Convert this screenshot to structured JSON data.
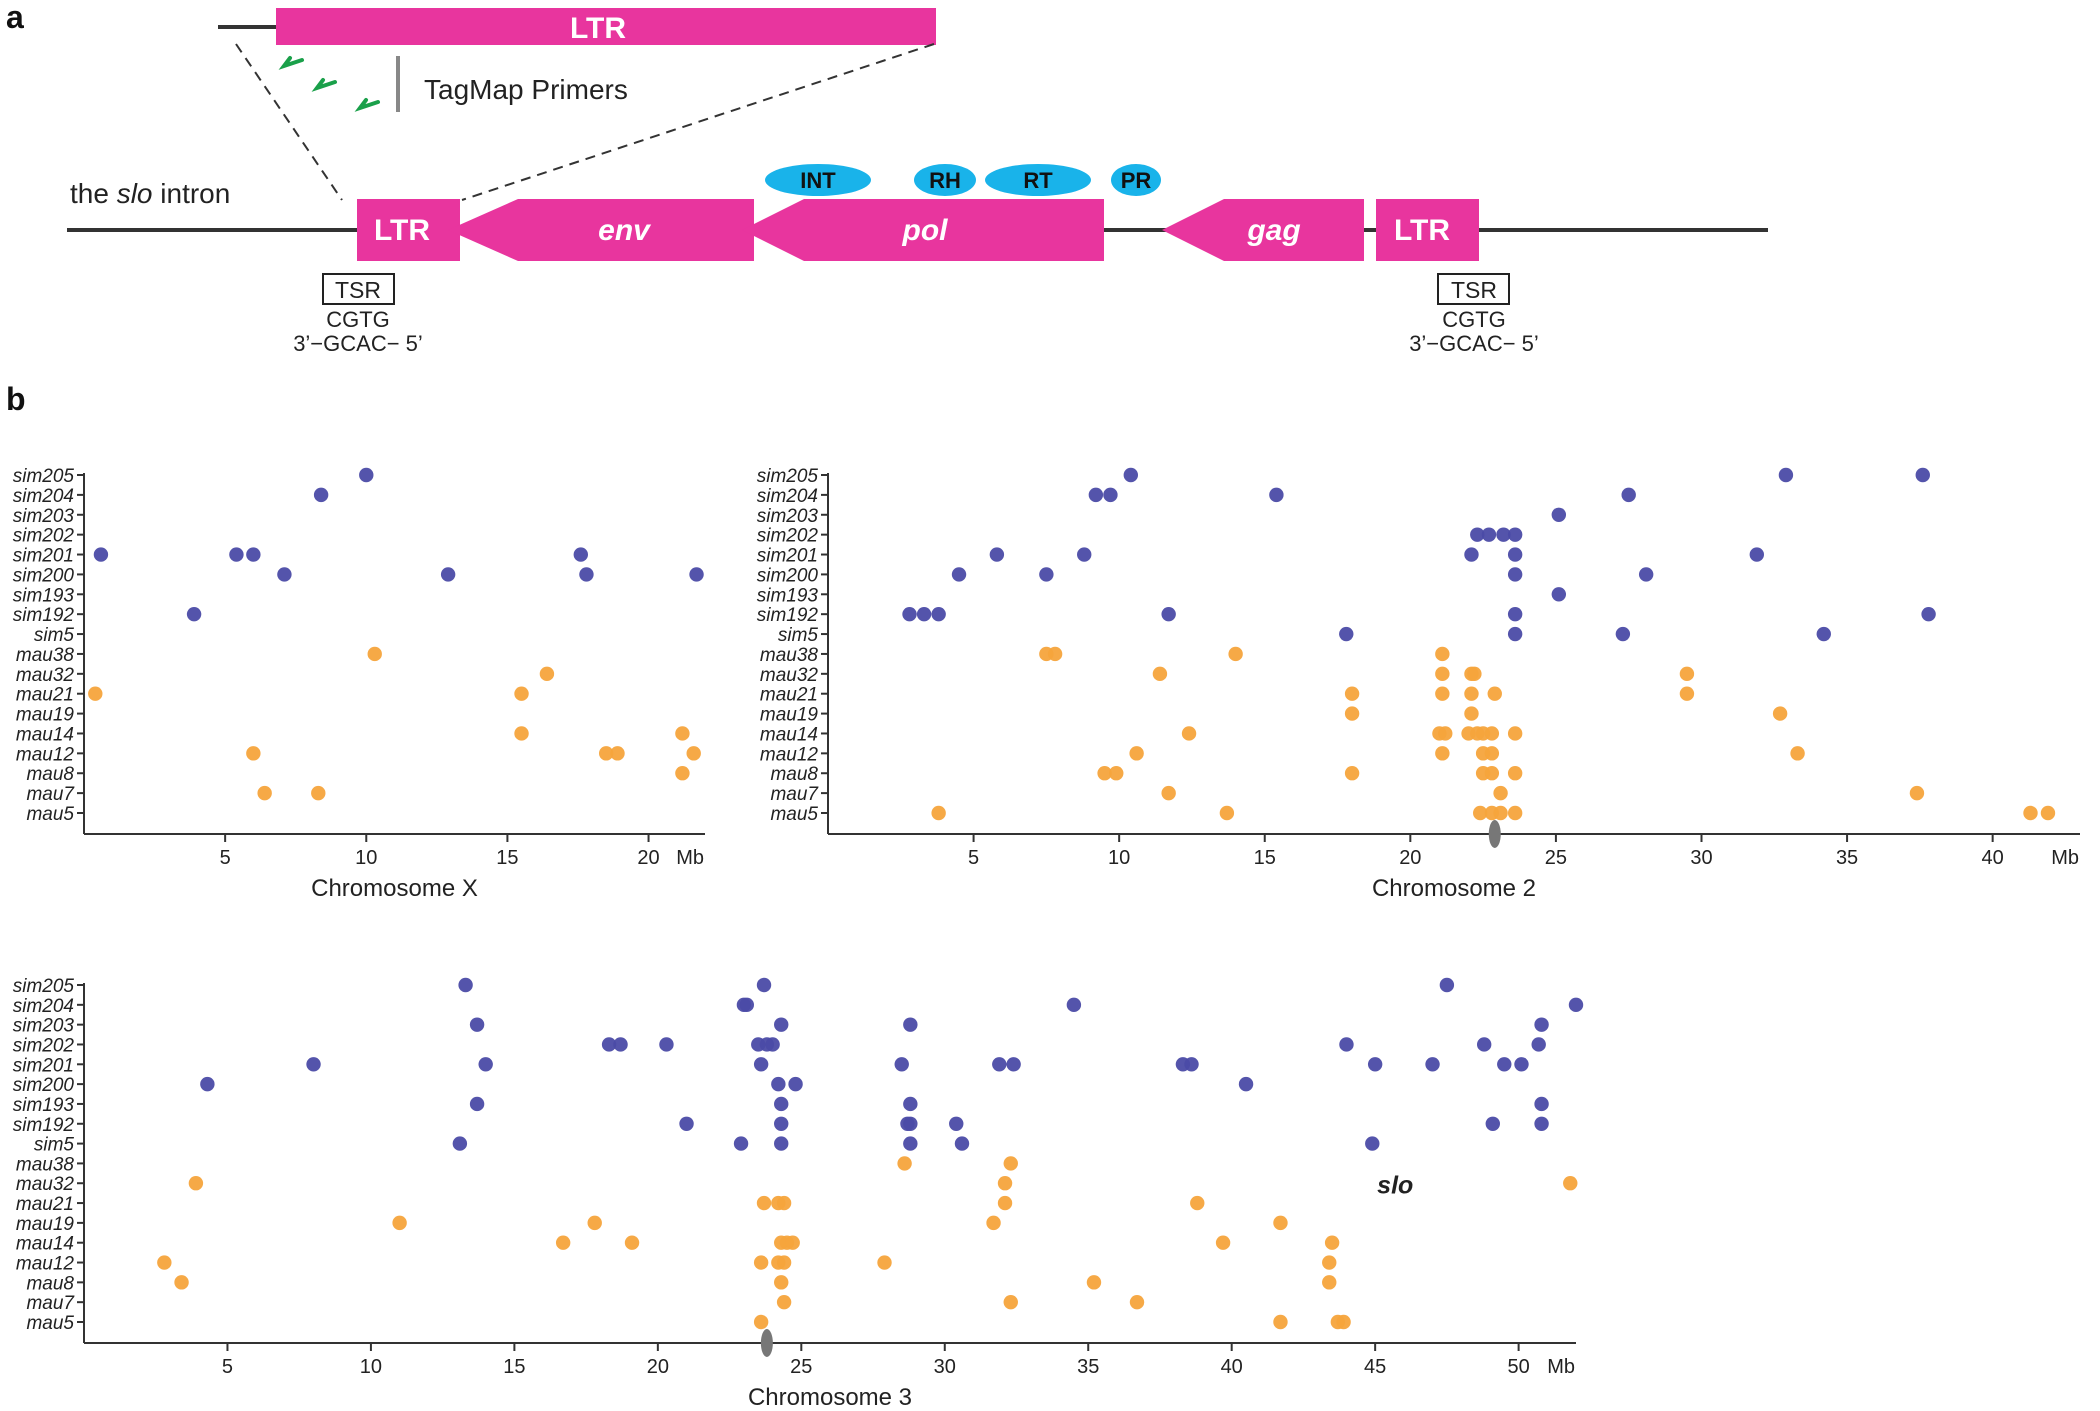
{
  "panel_a": {
    "label": "a",
    "intron_label_prefix": "the ",
    "intron_label_gene": "slo",
    "intron_label_suffix": " intron",
    "zoom_ltr_label": "LTR",
    "primers_label": "TagMap Primers",
    "ltr_left": "LTR",
    "ltr_right": "LTR",
    "env": "env",
    "pol": "pol",
    "gag": "gag",
    "domains": [
      "INT",
      "RH",
      "RT",
      "PR"
    ],
    "tsr_label": "TSR",
    "tsr_top": "CGTG",
    "tsr_bottom": "3’−GCAC− 5’",
    "colors": {
      "element": "#e8359e",
      "domain": "#19b3ea",
      "primer": "#1aa04a",
      "line": "#333333"
    }
  },
  "panel_b": {
    "label": "b"
  },
  "colors": {
    "sim": "#4b4ba6",
    "mau": "#f6a43c",
    "axis": "#333333",
    "centromere": "#777777"
  },
  "chart_data": [
    {
      "type": "scatter",
      "title": "",
      "xlabel": "Chromosome X",
      "x_unit": "Mb",
      "xlim": [
        0,
        22
      ],
      "xticks": [
        5,
        10,
        15,
        20
      ],
      "strains": [
        "sim205",
        "sim204",
        "sim203",
        "sim202",
        "sim201",
        "sim200",
        "sim193",
        "sim192",
        "sim5",
        "mau38",
        "mau32",
        "mau21",
        "mau19",
        "mau14",
        "mau12",
        "mau8",
        "mau7",
        "mau5"
      ],
      "series": [
        {
          "name": "sim205",
          "values": [
            10.0
          ]
        },
        {
          "name": "sim204",
          "values": [
            8.4
          ]
        },
        {
          "name": "sim203",
          "values": []
        },
        {
          "name": "sim202",
          "values": []
        },
        {
          "name": "sim201",
          "values": [
            0.6,
            5.4,
            6.0,
            17.6
          ]
        },
        {
          "name": "sim200",
          "values": [
            7.1,
            12.9,
            17.8,
            21.7
          ]
        },
        {
          "name": "sim193",
          "values": []
        },
        {
          "name": "sim192",
          "values": [
            3.9
          ]
        },
        {
          "name": "sim5",
          "values": []
        },
        {
          "name": "mau38",
          "values": [
            10.3
          ]
        },
        {
          "name": "mau32",
          "values": [
            16.4
          ]
        },
        {
          "name": "mau21",
          "values": [
            0.4,
            15.5
          ]
        },
        {
          "name": "mau19",
          "values": []
        },
        {
          "name": "mau14",
          "values": [
            15.5,
            21.2
          ]
        },
        {
          "name": "mau12",
          "values": [
            6.0,
            18.5,
            18.9,
            21.6
          ]
        },
        {
          "name": "mau8",
          "values": [
            21.2
          ]
        },
        {
          "name": "mau7",
          "values": [
            6.4,
            8.3
          ]
        },
        {
          "name": "mau5",
          "values": []
        }
      ],
      "centromere": null,
      "annotation": ""
    },
    {
      "type": "scatter",
      "title": "",
      "xlabel": "Chromosome 2",
      "x_unit": "Mb",
      "xlim": [
        0,
        43
      ],
      "xticks": [
        5,
        10,
        15,
        20,
        25,
        30,
        35,
        40
      ],
      "strains": [
        "sim205",
        "sim204",
        "sim203",
        "sim202",
        "sim201",
        "sim200",
        "sim193",
        "sim192",
        "sim5",
        "mau38",
        "mau32",
        "mau21",
        "mau19",
        "mau14",
        "mau12",
        "mau8",
        "mau7",
        "mau5"
      ],
      "series": [
        {
          "name": "sim205",
          "values": [
            10.4,
            32.9,
            37.6
          ]
        },
        {
          "name": "sim204",
          "values": [
            9.2,
            9.7,
            15.4,
            27.5
          ]
        },
        {
          "name": "sim203",
          "values": [
            25.1
          ]
        },
        {
          "name": "sim202",
          "values": [
            22.3,
            22.7,
            23.2,
            23.6
          ]
        },
        {
          "name": "sim201",
          "values": [
            5.8,
            8.8,
            22.1,
            23.6,
            31.9
          ]
        },
        {
          "name": "sim200",
          "values": [
            4.5,
            7.5,
            23.6,
            28.1
          ]
        },
        {
          "name": "sim193",
          "values": [
            25.1
          ]
        },
        {
          "name": "sim192",
          "values": [
            2.8,
            3.3,
            3.8,
            11.7,
            23.6,
            37.8
          ]
        },
        {
          "name": "sim5",
          "values": [
            17.8,
            23.6,
            27.3,
            34.2
          ]
        },
        {
          "name": "mau38",
          "values": [
            7.5,
            7.8,
            14.0,
            21.1
          ]
        },
        {
          "name": "mau32",
          "values": [
            11.4,
            21.1,
            22.1,
            22.2,
            29.5
          ]
        },
        {
          "name": "mau21",
          "values": [
            18.0,
            21.1,
            22.1,
            22.9,
            29.5
          ]
        },
        {
          "name": "mau19",
          "values": [
            18.0,
            22.1,
            32.7
          ]
        },
        {
          "name": "mau14",
          "values": [
            12.4,
            21.0,
            21.2,
            22.0,
            22.3,
            22.5,
            22.8,
            23.6
          ]
        },
        {
          "name": "mau12",
          "values": [
            10.6,
            21.1,
            22.5,
            22.8,
            33.3
          ]
        },
        {
          "name": "mau8",
          "values": [
            9.5,
            9.9,
            18.0,
            22.5,
            22.8,
            23.6
          ]
        },
        {
          "name": "mau7",
          "values": [
            11.7,
            23.1,
            37.4
          ]
        },
        {
          "name": "mau5",
          "values": [
            3.8,
            13.7,
            22.4,
            22.8,
            23.1,
            23.6,
            41.3,
            41.9
          ]
        }
      ],
      "centromere": 22.9,
      "annotation": ""
    },
    {
      "type": "scatter",
      "title": "",
      "xlabel": "Chromosome 3",
      "x_unit": "Mb",
      "xlim": [
        0,
        52
      ],
      "xticks": [
        5,
        10,
        15,
        20,
        25,
        30,
        35,
        40,
        45,
        50
      ],
      "strains": [
        "sim205",
        "sim204",
        "sim203",
        "sim202",
        "sim201",
        "sim200",
        "sim193",
        "sim192",
        "sim5",
        "mau38",
        "mau32",
        "mau21",
        "mau19",
        "mau14",
        "mau12",
        "mau8",
        "mau7",
        "mau5"
      ],
      "series": [
        {
          "name": "sim205",
          "values": [
            13.3,
            23.7,
            47.5
          ]
        },
        {
          "name": "sim204",
          "values": [
            23.0,
            23.1,
            34.5,
            52.0
          ]
        },
        {
          "name": "sim203",
          "values": [
            13.7,
            24.3,
            28.8,
            50.8
          ]
        },
        {
          "name": "sim202",
          "values": [
            18.3,
            18.7,
            20.3,
            23.5,
            23.8,
            24.0,
            44.0,
            48.8,
            50.7
          ]
        },
        {
          "name": "sim201",
          "values": [
            8.0,
            14.0,
            23.6,
            28.5,
            31.9,
            32.4,
            38.3,
            38.6,
            45.0,
            47.0,
            49.5,
            50.1
          ]
        },
        {
          "name": "sim200",
          "values": [
            4.3,
            24.2,
            24.8,
            40.5
          ]
        },
        {
          "name": "sim193",
          "values": [
            13.7,
            24.3,
            28.8,
            50.8
          ]
        },
        {
          "name": "sim192",
          "values": [
            21.0,
            24.3,
            28.7,
            28.8,
            30.4,
            49.1,
            50.8
          ]
        },
        {
          "name": "sim5",
          "values": [
            13.1,
            22.9,
            24.3,
            28.8,
            30.6,
            44.9
          ]
        },
        {
          "name": "mau38",
          "values": [
            28.6,
            32.3
          ]
        },
        {
          "name": "mau32",
          "values": [
            3.9,
            32.1,
            51.8
          ]
        },
        {
          "name": "mau21",
          "values": [
            23.7,
            24.2,
            24.4,
            32.1,
            38.8
          ]
        },
        {
          "name": "mau19",
          "values": [
            11.0,
            17.8,
            31.7,
            41.7
          ]
        },
        {
          "name": "mau14",
          "values": [
            16.7,
            19.1,
            24.3,
            24.5,
            24.7,
            39.7,
            43.5
          ]
        },
        {
          "name": "mau12",
          "values": [
            2.8,
            23.6,
            24.2,
            24.4,
            27.9,
            43.4
          ]
        },
        {
          "name": "mau8",
          "values": [
            3.4,
            24.3,
            35.2,
            43.4
          ]
        },
        {
          "name": "mau7",
          "values": [
            24.4,
            32.3,
            36.7
          ]
        },
        {
          "name": "mau5",
          "values": [
            23.6,
            41.7,
            43.7,
            43.9
          ]
        }
      ],
      "centromere": 23.8,
      "annotation": "slo"
    }
  ]
}
